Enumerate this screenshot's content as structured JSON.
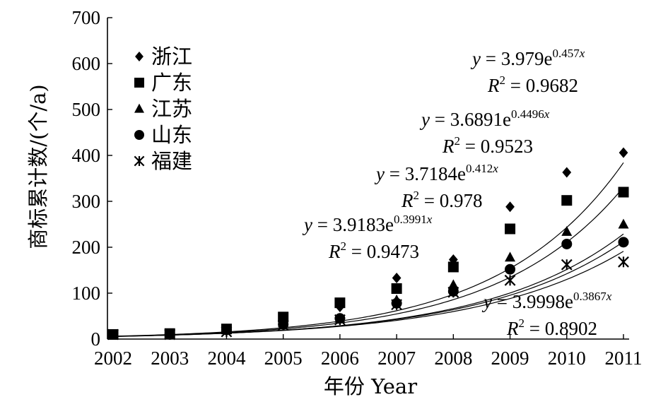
{
  "chart_data": {
    "type": "scatter",
    "x": [
      "2002",
      "2003",
      "2004",
      "2005",
      "2006",
      "2007",
      "2008",
      "2009",
      "2010",
      "2011"
    ],
    "xlabel": "年份 Year",
    "ylabel": "商标累计数/(个/a)",
    "ylim": [
      0,
      700
    ],
    "yticks": [
      0,
      100,
      200,
      300,
      400,
      500,
      600,
      700
    ],
    "grid": false,
    "legend_position": "top-left",
    "series": [
      {
        "name": "浙江",
        "marker": "diamond",
        "values": [
          10,
          12,
          22,
          38,
          70,
          133,
          173,
          288,
          363,
          406
        ],
        "fit": {
          "a": 3.979,
          "b": 0.457,
          "r2_label": "0.9682",
          "equation": "y = 3.979e^0.457x"
        }
      },
      {
        "name": "广东",
        "marker": "square",
        "values": [
          10,
          12,
          22,
          48,
          79,
          110,
          157,
          240,
          302,
          320
        ],
        "fit": {
          "a": 3.6891,
          "b": 0.4496,
          "r2_label": "0.9523",
          "equation": "y = 3.6891e^0.4496x"
        }
      },
      {
        "name": "江苏",
        "marker": "triangle",
        "values": [
          10,
          10,
          20,
          35,
          45,
          85,
          118,
          178,
          234,
          250
        ],
        "fit": {
          "a": 3.7184,
          "b": 0.412,
          "r2_label": "0.978",
          "equation": "y = 3.7184e^0.412x"
        }
      },
      {
        "name": "山东",
        "marker": "circle",
        "values": [
          10,
          10,
          20,
          32,
          45,
          78,
          104,
          152,
          207,
          211
        ],
        "fit": {
          "a": 3.9183,
          "b": 0.3991,
          "r2_label": "0.9473",
          "equation": "y = 3.9183e^0.3991x"
        }
      },
      {
        "name": "福建",
        "marker": "asterisk",
        "values": [
          10,
          10,
          16,
          30,
          42,
          75,
          102,
          128,
          162,
          168
        ],
        "fit": {
          "a": 3.9998,
          "b": 0.3867,
          "r2_label": "0.8902",
          "equation": "y = 3.9998e^0.3867x"
        }
      }
    ]
  }
}
